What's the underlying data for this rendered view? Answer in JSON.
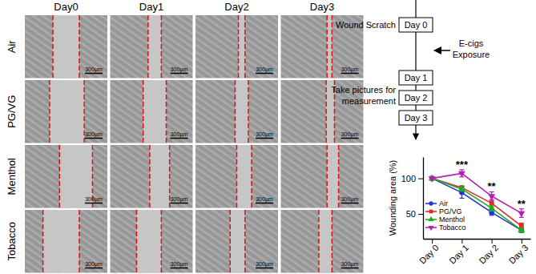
{
  "panels": {
    "columns": [
      "Day0",
      "Day1",
      "Day2",
      "Day3"
    ],
    "rows": [
      "Air",
      "PG/VG",
      "Menthol",
      "Tobacco"
    ],
    "scale_bar": "300μm"
  },
  "diagram": {
    "steps": [
      "Day 0",
      "Day 1",
      "Day 2",
      "Day 3"
    ],
    "scratch": "Wound Scratch",
    "exposure": [
      "E-cigs",
      "Exposure"
    ],
    "pictures": [
      "Take pictures for",
      "measurement"
    ]
  },
  "chart_data": {
    "type": "line",
    "y_label": "Wounding area (%)",
    "categories": [
      "Day 0",
      "Day 1",
      "Day 2",
      "Day 3"
    ],
    "ylim": [
      15,
      130
    ],
    "yticks": [
      50,
      100
    ],
    "grid": false,
    "legend": "lower left",
    "series": [
      {
        "name": "Air",
        "color": "#2233dd",
        "marker": "circle",
        "values": [
          100,
          80,
          52,
          27
        ],
        "errors": [
          0,
          8,
          4,
          3
        ]
      },
      {
        "name": "PG/VG",
        "color": "#e8262a",
        "marker": "square",
        "values": [
          100,
          87,
          65,
          33
        ],
        "errors": [
          0,
          2,
          5,
          4
        ]
      },
      {
        "name": "Menthol",
        "color": "#1fad1f",
        "marker": "triangle-up",
        "values": [
          100,
          85,
          58,
          27
        ],
        "errors": [
          0,
          3,
          4,
          3
        ]
      },
      {
        "name": "Tobacco",
        "color": "#b21fb2",
        "marker": "triangle-down",
        "values": [
          100,
          107,
          75,
          51
        ],
        "errors": [
          0,
          5,
          6,
          6
        ]
      }
    ],
    "annotations": [
      {
        "x": "Day 1",
        "text": "***"
      },
      {
        "x": "Day 2",
        "text": "**"
      },
      {
        "x": "Day 3",
        "text": "**"
      }
    ]
  }
}
